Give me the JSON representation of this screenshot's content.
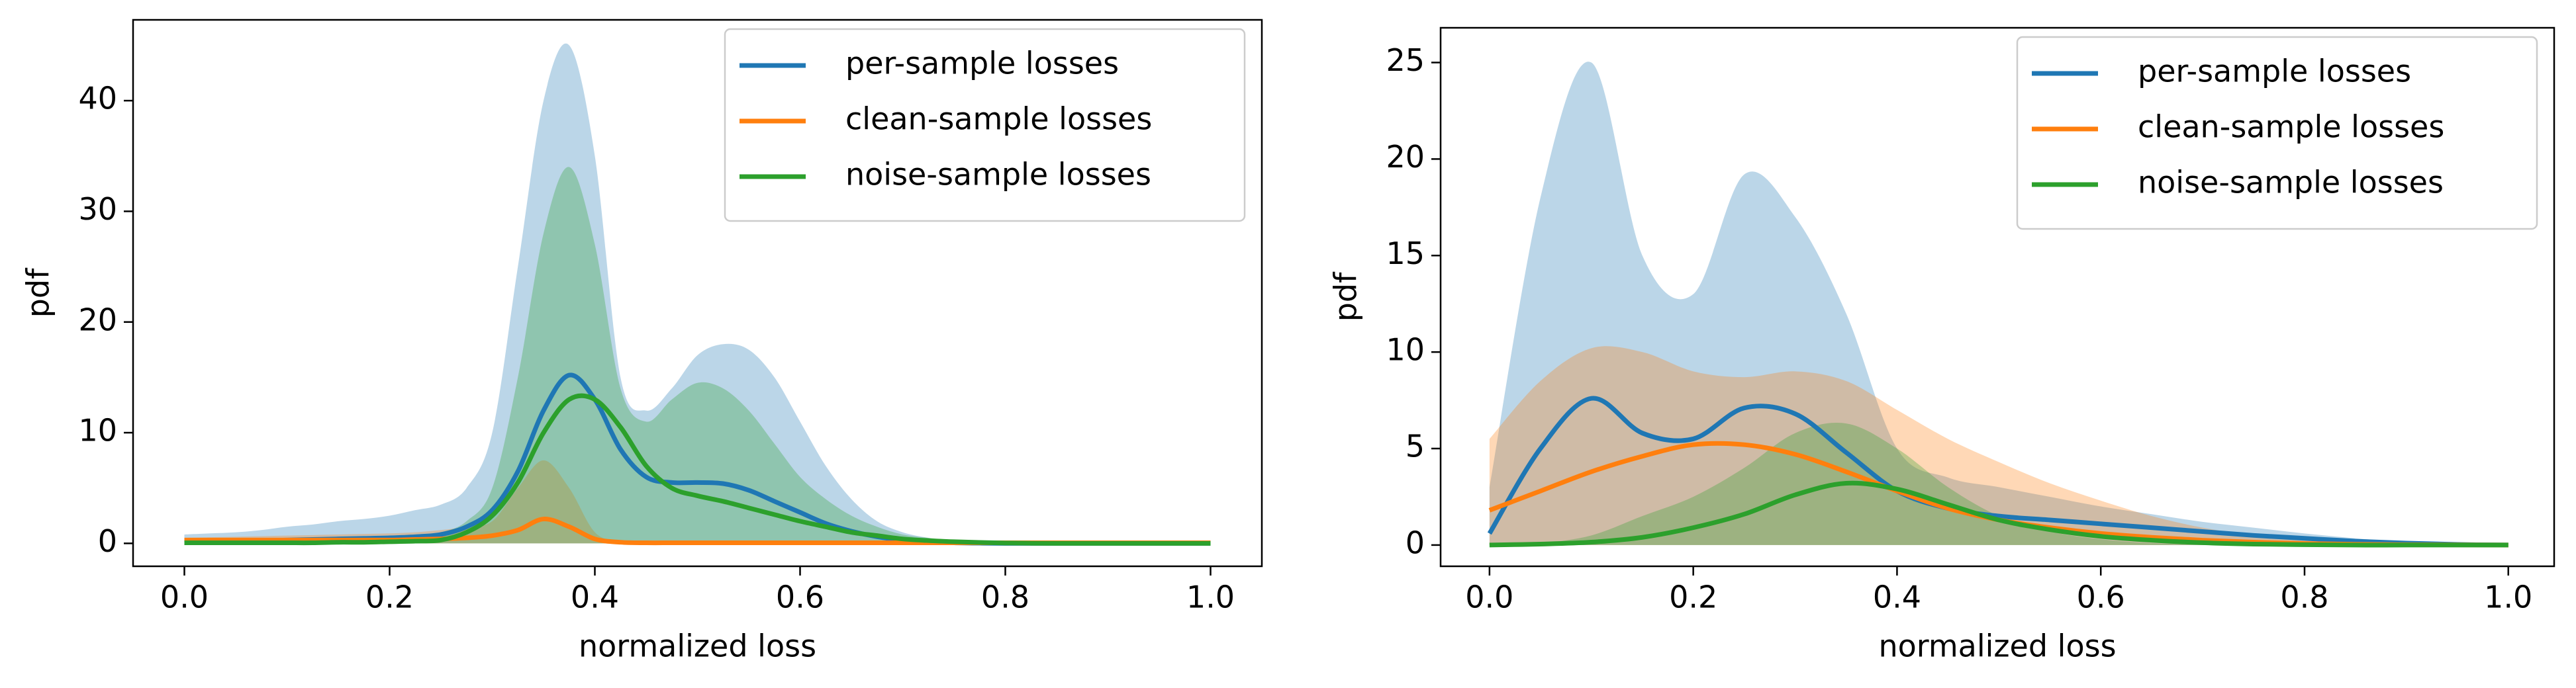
{
  "chart_data": [
    {
      "type": "line",
      "xlabel": "normalized loss",
      "ylabel": "pdf",
      "legend": "upper right",
      "x": [
        0,
        0.025,
        0.05,
        0.075,
        0.1,
        0.125,
        0.15,
        0.175,
        0.2,
        0.225,
        0.25,
        0.275,
        0.3,
        0.325,
        0.35,
        0.375,
        0.4,
        0.425,
        0.45,
        0.475,
        0.5,
        0.525,
        0.55,
        0.575,
        0.6,
        0.625,
        0.65,
        0.675,
        0.7,
        0.725,
        0.75,
        0.775,
        0.8,
        0.825,
        0.85,
        0.875,
        0.9,
        0.925,
        0.95,
        0.975,
        1
      ],
      "xlim": [
        -0.05,
        1.05
      ],
      "xticks": [
        {
          "value": 0,
          "label": "0.0"
        },
        0.2,
        0.4,
        0.6,
        0.8,
        {
          "value": 1,
          "label": "1.0"
        }
      ],
      "ylim": [
        -2.07,
        47.3
      ],
      "yticks": [
        0,
        10,
        20,
        30,
        40
      ],
      "series": [
        {
          "name": "per-sample losses",
          "color": "#1f77b4",
          "values": [
            0.1,
            0.15,
            0.2,
            0.25,
            0.3,
            0.35,
            0.4,
            0.45,
            0.5,
            0.6,
            0.8,
            1.5,
            3,
            6.5,
            12,
            15.2,
            13,
            8.5,
            6,
            5.5,
            5.5,
            5.4,
            4.8,
            3.8,
            2.8,
            1.8,
            1.1,
            0.6,
            0.3,
            0.15,
            0.05,
            0.02,
            0,
            0,
            0,
            0,
            0,
            0,
            0,
            0,
            0
          ]
        },
        {
          "name": "clean-sample losses",
          "color": "#ff7f0e",
          "values": [
            0.3,
            0.3,
            0.3,
            0.3,
            0.3,
            0.3,
            0.3,
            0.3,
            0.3,
            0.35,
            0.4,
            0.5,
            0.7,
            1.2,
            2.2,
            1.5,
            0.4,
            0.1,
            0.05,
            0.05,
            0.05,
            0.05,
            0.05,
            0.05,
            0.05,
            0.05,
            0.05,
            0.05,
            0.05,
            0.05,
            0.05,
            0.05,
            0.05,
            0.05,
            0.05,
            0.05,
            0.05,
            0.05,
            0.05,
            0.05,
            0.05
          ]
        },
        {
          "name": "noise-sample losses",
          "color": "#2ca02c",
          "values": [
            0.05,
            0.05,
            0.05,
            0.05,
            0.05,
            0.05,
            0.1,
            0.1,
            0.15,
            0.2,
            0.3,
            1,
            2.5,
            5.5,
            10,
            13,
            13,
            10.5,
            7,
            5,
            4.3,
            3.8,
            3.2,
            2.6,
            2,
            1.5,
            1,
            0.7,
            0.4,
            0.25,
            0.15,
            0.08,
            0.03,
            0.01,
            0,
            0,
            0,
            0,
            0,
            0,
            0
          ]
        }
      ],
      "areas": [
        {
          "color": "#1f77b4",
          "values": [
            0.8,
            0.9,
            1,
            1.2,
            1.5,
            1.7,
            2,
            2.2,
            2.5,
            3,
            3.5,
            5,
            10,
            25,
            40,
            45,
            35,
            15,
            12,
            14,
            17,
            18,
            17.5,
            15,
            11,
            7,
            4,
            2,
            1,
            0.5,
            0.2,
            0.1,
            0.05,
            0,
            0,
            0,
            0,
            0,
            0,
            0,
            0
          ]
        },
        {
          "color": "#ff7f0e",
          "values": [
            0.5,
            0.55,
            0.6,
            0.65,
            0.7,
            0.75,
            0.8,
            0.85,
            0.9,
            1,
            1.2,
            1.5,
            2,
            5,
            7.5,
            5,
            1,
            0.2,
            0.1,
            0.1,
            0.1,
            0.1,
            0.1,
            0.1,
            0.1,
            0.1,
            0.1,
            0.1,
            0.1,
            0.1,
            0.1,
            0.1,
            0.1,
            0.1,
            0.1,
            0.1,
            0.1,
            0.1,
            0.1,
            0.1,
            0.1
          ]
        },
        {
          "color": "#2ca02c",
          "values": [
            0.2,
            0.2,
            0.2,
            0.2,
            0.2,
            0.25,
            0.3,
            0.4,
            0.5,
            0.7,
            1,
            2,
            5,
            15,
            28,
            34,
            27,
            14,
            11,
            13,
            14.5,
            14,
            12,
            9,
            6,
            4,
            2.5,
            1.5,
            0.8,
            0.5,
            0.3,
            0.15,
            0.05,
            0.02,
            0,
            0,
            0,
            0,
            0,
            0,
            0
          ]
        }
      ]
    },
    {
      "type": "line",
      "xlabel": "normalized loss",
      "ylabel": "pdf",
      "legend": "upper right",
      "x": [
        0,
        0.05,
        0.1,
        0.15,
        0.2,
        0.25,
        0.3,
        0.35,
        0.4,
        0.45,
        0.5,
        0.55,
        0.6,
        0.65,
        0.7,
        0.75,
        0.8,
        0.85,
        0.9,
        0.95,
        1
      ],
      "xlim": [
        -0.048,
        1.045
      ],
      "xticks": [
        {
          "value": 0,
          "label": "0.0"
        },
        0.2,
        0.4,
        0.6,
        0.8,
        {
          "value": 1,
          "label": "1.0"
        }
      ],
      "ylim": [
        -1.1,
        26.8
      ],
      "yticks": [
        0,
        5,
        10,
        15,
        20,
        25
      ],
      "series": [
        {
          "name": "per-sample losses",
          "color": "#1f77b4",
          "values": [
            0.6,
            5,
            7.6,
            5.8,
            5.5,
            7.1,
            6.8,
            4.8,
            2.8,
            1.9,
            1.5,
            1.3,
            1.1,
            0.9,
            0.7,
            0.5,
            0.35,
            0.2,
            0.1,
            0.03,
            0
          ]
        },
        {
          "name": "clean-sample losses",
          "color": "#ff7f0e",
          "values": [
            1.8,
            2.8,
            3.8,
            4.6,
            5.2,
            5.2,
            4.7,
            3.8,
            2.8,
            1.9,
            1.3,
            0.9,
            0.6,
            0.4,
            0.25,
            0.15,
            0.08,
            0.04,
            0.02,
            0.01,
            0
          ]
        },
        {
          "name": "noise-sample losses",
          "color": "#2ca02c",
          "values": [
            0,
            0.05,
            0.15,
            0.4,
            0.9,
            1.6,
            2.6,
            3.2,
            2.9,
            2.1,
            1.3,
            0.8,
            0.45,
            0.25,
            0.12,
            0.05,
            0.02,
            0,
            0,
            0,
            0
          ]
        }
      ],
      "areas": [
        {
          "color": "#1f77b4",
          "values": [
            3,
            18,
            25,
            15,
            13,
            19.2,
            17,
            12,
            5,
            3.5,
            3,
            2.5,
            2,
            1.6,
            1.2,
            0.9,
            0.6,
            0.35,
            0.15,
            0.05,
            0
          ]
        },
        {
          "color": "#ff7f0e",
          "values": [
            5.5,
            8.5,
            10.2,
            10,
            9,
            8.7,
            9,
            8.5,
            7,
            5.5,
            4.3,
            3.2,
            2.3,
            1.5,
            0.9,
            0.5,
            0.25,
            0.1,
            0.04,
            0.01,
            0
          ]
        },
        {
          "color": "#2ca02c",
          "values": [
            0,
            0.1,
            0.5,
            1.5,
            2.5,
            4,
            5.8,
            6.3,
            5,
            3,
            1.5,
            0.7,
            0.3,
            0.1,
            0.03,
            0,
            0,
            0,
            0,
            0,
            0
          ]
        }
      ]
    }
  ]
}
